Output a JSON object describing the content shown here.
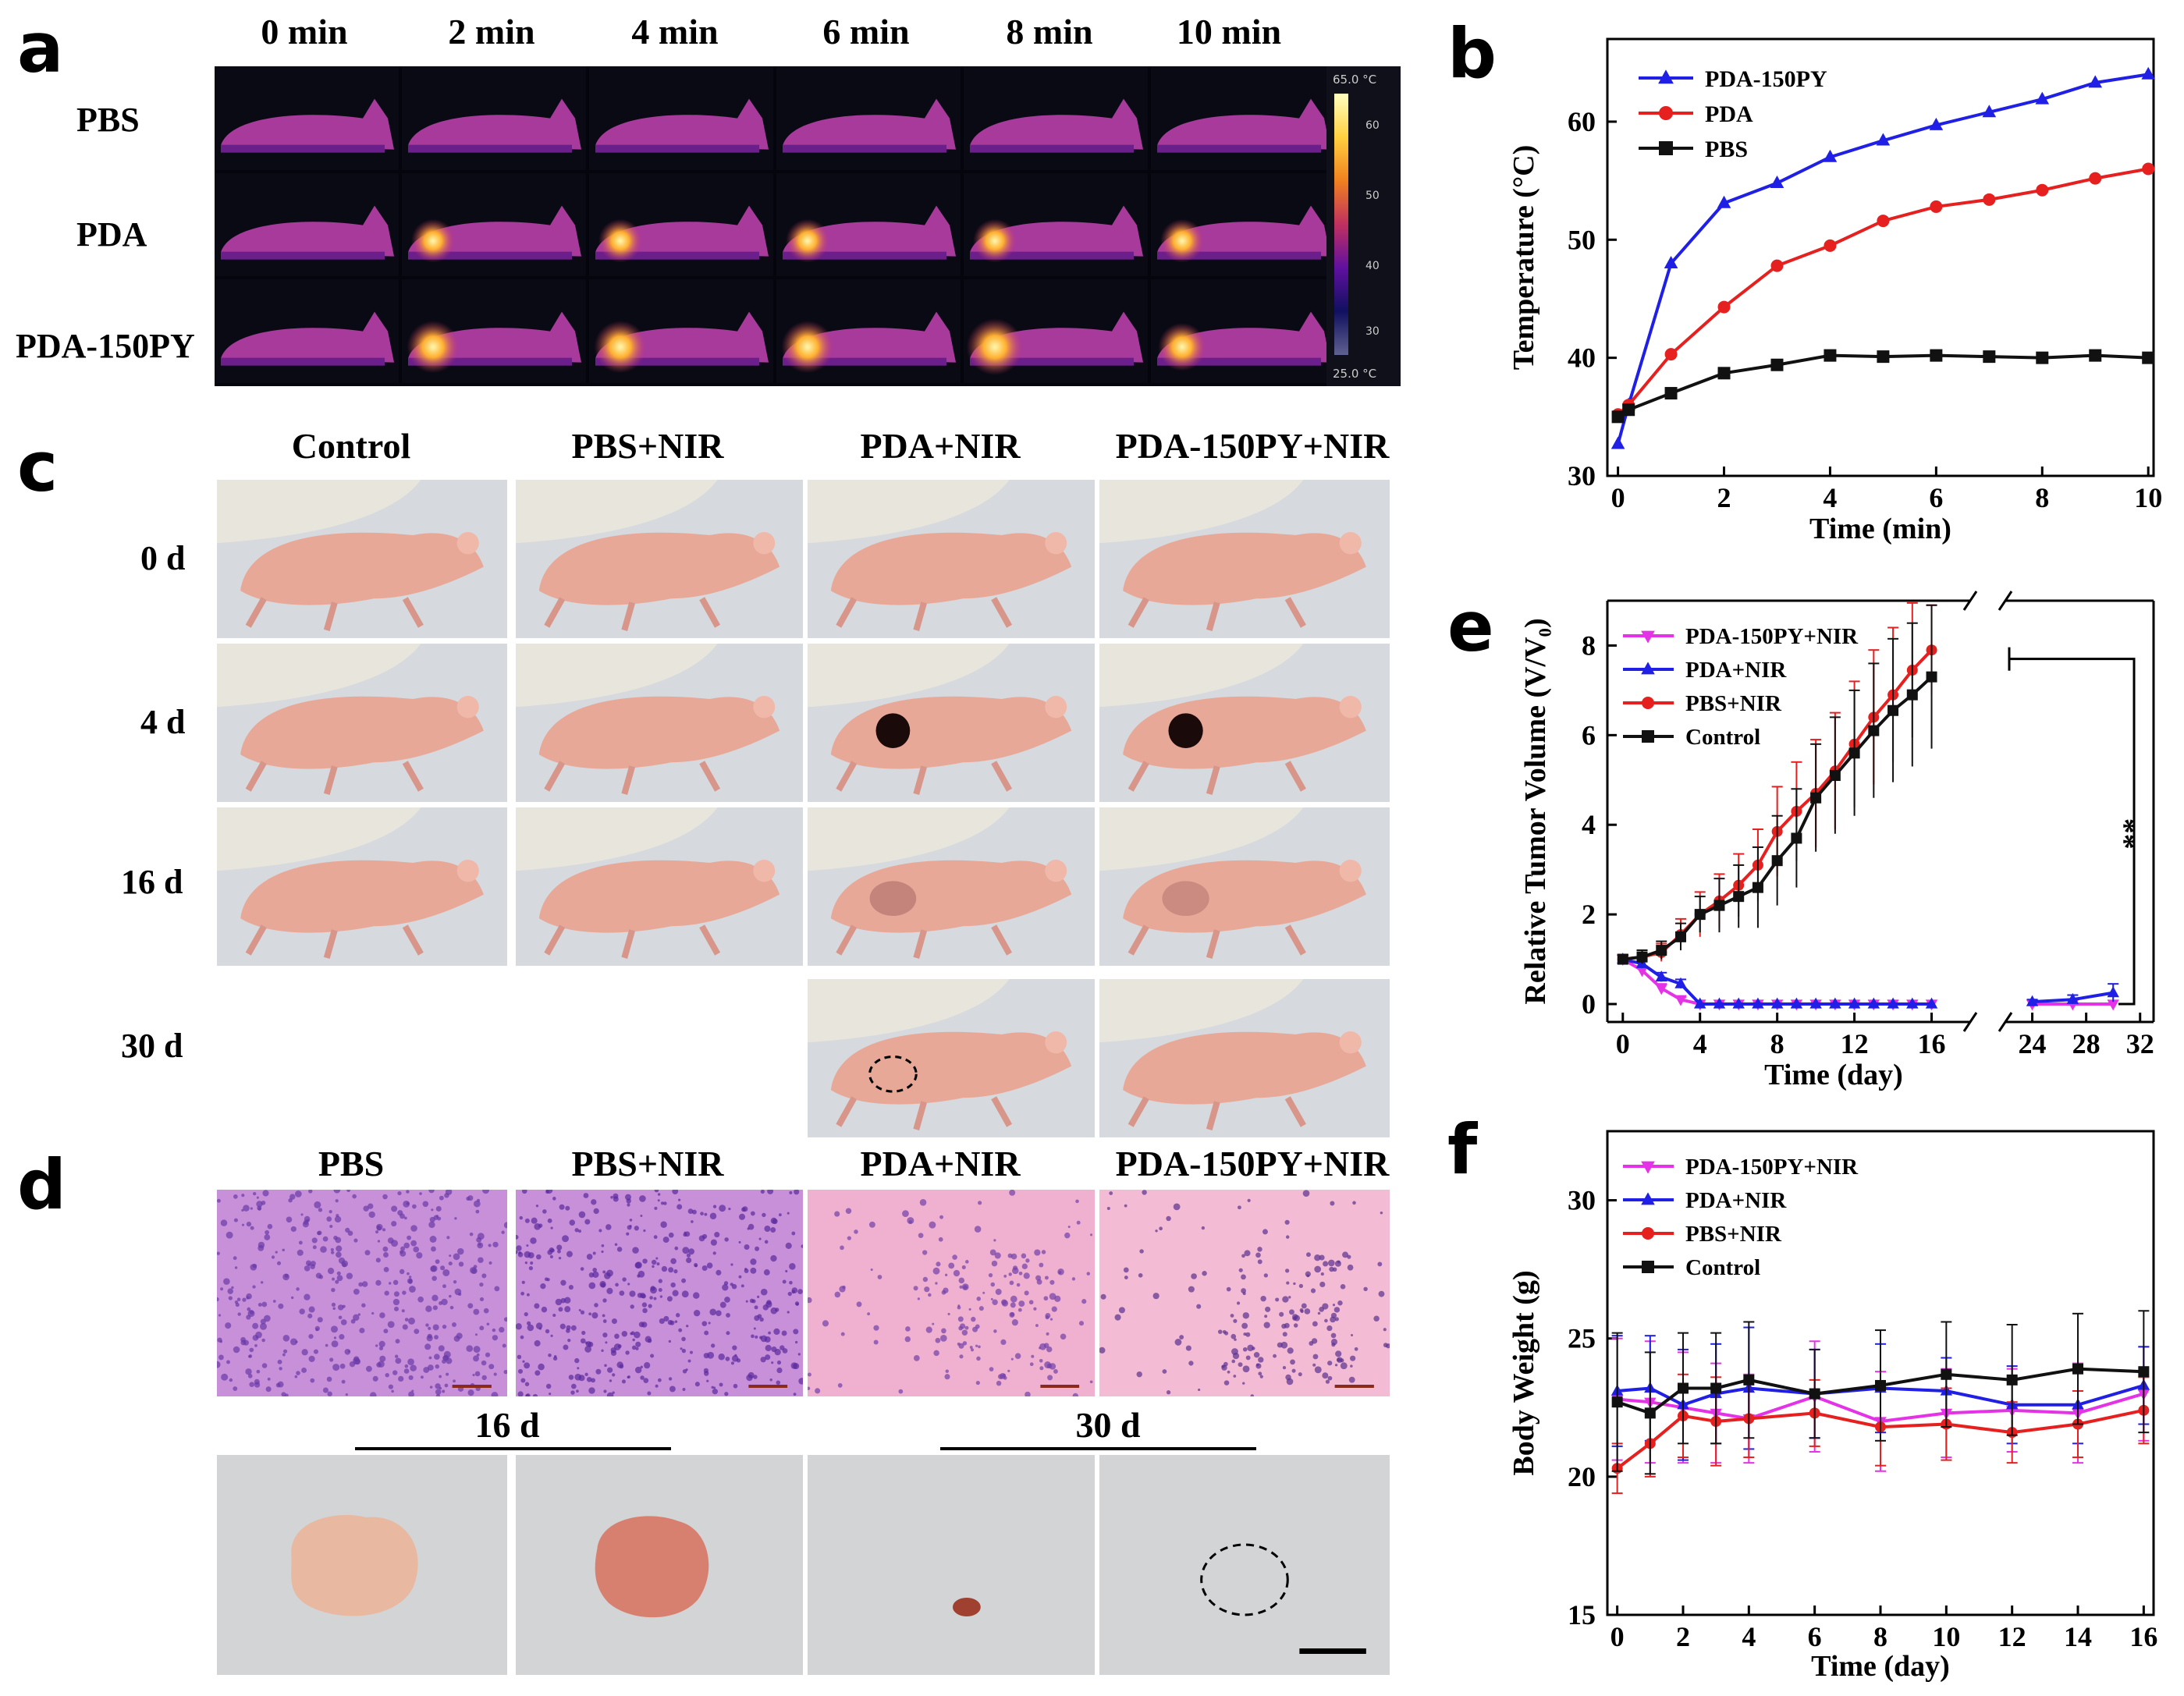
{
  "panels": {
    "a": "a",
    "b": "b",
    "c": "c",
    "d": "d",
    "e": "e",
    "f": "f"
  },
  "panel_a": {
    "time_labels": [
      "0 min",
      "2 min",
      "4 min",
      "6 min",
      "8 min",
      "10 min"
    ],
    "row_labels": [
      "PBS",
      "PDA",
      "PDA-150PY"
    ],
    "colorbar": {
      "max": "65.0 °C",
      "min": "25.0 °C",
      "ticks": [
        "60",
        "50",
        "40",
        "30"
      ]
    }
  },
  "panel_c": {
    "col_labels": [
      "Control",
      "PBS+NIR",
      "PDA+NIR",
      "PDA-150PY+NIR"
    ],
    "row_labels": [
      "0 d",
      "4 d",
      "16 d",
      "30 d"
    ]
  },
  "panel_d": {
    "col_labels": [
      "PBS",
      "PBS+NIR",
      "PDA+NIR",
      "PDA-150PY+NIR"
    ],
    "group_labels": [
      "16 d",
      "30 d"
    ]
  },
  "colors": {
    "blue": "#1f1fe6",
    "red": "#e61f1f",
    "black": "#111111",
    "magenta": "#e632e6"
  },
  "chart_data": [
    {
      "id": "b",
      "type": "line",
      "xlabel": "Time (min)",
      "ylabel": "Temperature (°C)",
      "xlim": [
        -0.2,
        10.1
      ],
      "ylim": [
        30,
        67
      ],
      "xticks": [
        0,
        2,
        4,
        6,
        8,
        10
      ],
      "yticks": [
        30,
        40,
        50,
        60
      ],
      "x": [
        0,
        0.2,
        1,
        2,
        3,
        4,
        5,
        6,
        7,
        8,
        9,
        10
      ],
      "series": [
        {
          "name": "PDA-150PY",
          "color": "#1f1fe6",
          "marker": "triangle",
          "values": [
            32.7,
            36.0,
            48.0,
            53.1,
            54.8,
            57.0,
            58.4,
            59.7,
            60.8,
            61.9,
            63.3,
            64.0
          ]
        },
        {
          "name": "PDA",
          "color": "#e61f1f",
          "marker": "circle",
          "values": [
            35.2,
            36.0,
            40.3,
            44.3,
            47.8,
            49.5,
            51.6,
            52.8,
            53.4,
            54.2,
            55.2,
            56.0
          ]
        },
        {
          "name": "PBS",
          "color": "#111111",
          "marker": "square",
          "values": [
            35.0,
            35.6,
            37.0,
            38.7,
            39.4,
            40.2,
            40.1,
            40.2,
            40.1,
            40.0,
            40.2,
            40.0
          ]
        }
      ]
    },
    {
      "id": "e",
      "type": "line",
      "xlabel": "Time (day)",
      "ylabel": "Relative Tumor Volume (V/V₀)",
      "ylim": [
        -0.4,
        9.0
      ],
      "yticks": [
        0,
        2,
        4,
        6,
        8
      ],
      "xticks": [
        0,
        4,
        8,
        12,
        16,
        24,
        28,
        32
      ],
      "break": [
        18,
        22
      ],
      "significance": "**",
      "series": [
        {
          "name": "PDA-150PY+NIR",
          "color": "#e632e6",
          "marker": "triangle-down",
          "x": [
            0,
            1,
            2,
            3,
            4,
            5,
            6,
            7,
            8,
            9,
            10,
            11,
            12,
            13,
            14,
            15,
            16,
            24,
            27,
            30
          ],
          "values": [
            1.0,
            0.75,
            0.35,
            0.1,
            0,
            0,
            0,
            0,
            0,
            0,
            0,
            0,
            0,
            0,
            0,
            0,
            0,
            0,
            0,
            0
          ],
          "errors": [
            0.1,
            0.1,
            0.1,
            0.05,
            0,
            0,
            0,
            0,
            0,
            0,
            0,
            0,
            0,
            0,
            0,
            0,
            0,
            0,
            0,
            0
          ]
        },
        {
          "name": "PDA+NIR",
          "color": "#1f1fe6",
          "marker": "triangle",
          "x": [
            0,
            1,
            2,
            3,
            4,
            5,
            6,
            7,
            8,
            9,
            10,
            11,
            12,
            13,
            14,
            15,
            16,
            24,
            27,
            30
          ],
          "values": [
            1.0,
            0.9,
            0.6,
            0.45,
            0,
            0,
            0,
            0,
            0,
            0,
            0,
            0,
            0,
            0,
            0,
            0,
            0,
            0.05,
            0.1,
            0.25
          ],
          "errors": [
            0.1,
            0.1,
            0.1,
            0.1,
            0,
            0,
            0,
            0,
            0,
            0,
            0,
            0,
            0,
            0,
            0,
            0,
            0,
            0.05,
            0.1,
            0.2
          ]
        },
        {
          "name": "PBS+NIR",
          "color": "#e61f1f",
          "marker": "circle",
          "x": [
            0,
            1,
            2,
            3,
            4,
            5,
            6,
            7,
            8,
            9,
            10,
            11,
            12,
            13,
            14,
            15,
            16
          ],
          "values": [
            1.0,
            1.05,
            1.15,
            1.55,
            2.0,
            2.3,
            2.65,
            3.1,
            3.85,
            4.3,
            4.7,
            5.2,
            5.8,
            6.4,
            6.9,
            7.45,
            7.9
          ],
          "errors": [
            0.1,
            0.15,
            0.2,
            0.35,
            0.5,
            0.6,
            0.7,
            0.8,
            1.0,
            1.1,
            1.2,
            1.3,
            1.4,
            1.5,
            1.5,
            1.5,
            1.0
          ]
        },
        {
          "name": "Control",
          "color": "#111111",
          "marker": "square",
          "x": [
            0,
            1,
            2,
            3,
            4,
            5,
            6,
            7,
            8,
            9,
            10,
            11,
            12,
            13,
            14,
            15,
            16
          ],
          "values": [
            1.0,
            1.05,
            1.2,
            1.5,
            2.0,
            2.2,
            2.4,
            2.6,
            3.2,
            3.7,
            4.6,
            5.1,
            5.6,
            6.1,
            6.55,
            6.9,
            7.3
          ],
          "errors": [
            0.1,
            0.15,
            0.2,
            0.3,
            0.4,
            0.6,
            0.7,
            0.9,
            1.0,
            1.1,
            1.2,
            1.3,
            1.4,
            1.5,
            1.6,
            1.6,
            1.6
          ]
        }
      ]
    },
    {
      "id": "f",
      "type": "line",
      "xlabel": "Time (day)",
      "ylabel": "Body Weight (g)",
      "xlim": [
        -0.3,
        16.3
      ],
      "ylim": [
        15,
        32.5
      ],
      "xticks": [
        0,
        2,
        4,
        6,
        8,
        10,
        12,
        14,
        16
      ],
      "yticks": [
        15,
        20,
        25,
        30
      ],
      "x": [
        0,
        1,
        2,
        3,
        4,
        6,
        8,
        10,
        12,
        14,
        16
      ],
      "series": [
        {
          "name": "PDA-150PY+NIR",
          "color": "#e632e6",
          "marker": "triangle-down",
          "values": [
            22.8,
            22.7,
            22.5,
            22.3,
            22.1,
            22.9,
            22.0,
            22.3,
            22.4,
            22.3,
            23.0
          ],
          "errors": [
            2.2,
            2.2,
            2.0,
            1.8,
            1.6,
            2.0,
            1.8,
            1.6,
            1.5,
            1.8,
            1.7
          ]
        },
        {
          "name": "PDA+NIR",
          "color": "#1f1fe6",
          "marker": "triangle",
          "values": [
            23.1,
            23.2,
            22.6,
            23.0,
            23.2,
            23.0,
            23.2,
            23.1,
            22.6,
            22.6,
            23.3
          ],
          "errors": [
            2.0,
            1.9,
            2.0,
            1.8,
            2.2,
            1.6,
            1.6,
            1.2,
            1.4,
            1.4,
            1.4
          ]
        },
        {
          "name": "PBS+NIR",
          "color": "#e61f1f",
          "marker": "circle",
          "values": [
            20.3,
            21.2,
            22.2,
            22.0,
            22.1,
            22.3,
            21.8,
            21.9,
            21.6,
            21.9,
            22.4
          ],
          "errors": [
            0.9,
            1.2,
            1.5,
            1.6,
            1.4,
            1.2,
            1.4,
            1.3,
            1.1,
            1.2,
            1.2
          ]
        },
        {
          "name": "Control",
          "color": "#111111",
          "marker": "square",
          "values": [
            22.7,
            22.3,
            23.2,
            23.2,
            23.5,
            23.0,
            23.3,
            23.7,
            23.5,
            23.9,
            23.8
          ],
          "errors": [
            2.5,
            2.2,
            2.0,
            2.0,
            2.1,
            1.6,
            2.0,
            1.9,
            2.0,
            2.0,
            2.2
          ]
        }
      ]
    }
  ]
}
